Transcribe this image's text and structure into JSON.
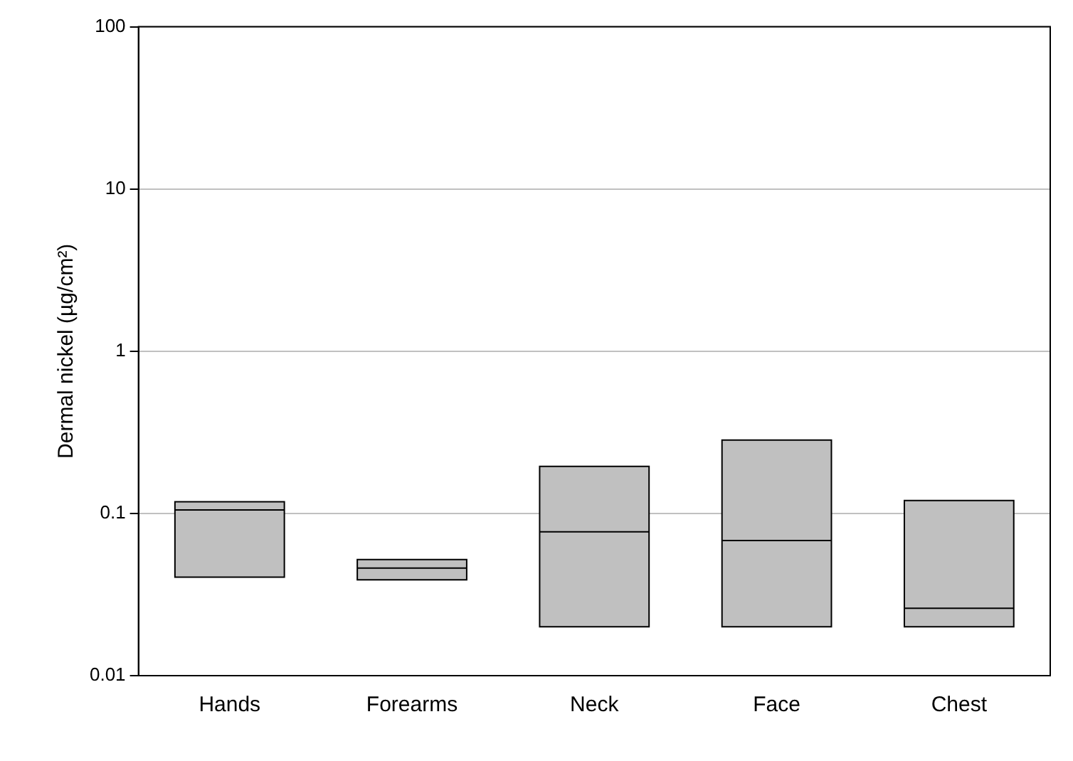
{
  "chart_data": {
    "type": "box",
    "ylabel": "Dermal nickel (µg/cm²)",
    "categories": [
      "Hands",
      "Forearms",
      "Neck",
      "Face",
      "Chest"
    ],
    "color": "#c0c0c0",
    "boxes": [
      {
        "low": 0.0405,
        "q1": 0.0405,
        "median": 0.105,
        "q3": 0.118,
        "high": 0.118
      },
      {
        "low": 0.039,
        "q1": 0.039,
        "median": 0.046,
        "q3": 0.052,
        "high": 0.052
      },
      {
        "low": 0.02,
        "q1": 0.02,
        "median": 0.077,
        "q3": 0.195,
        "high": 0.195
      },
      {
        "low": 0.02,
        "q1": 0.02,
        "median": 0.068,
        "q3": 0.283,
        "high": 0.283
      },
      {
        "low": 0.02,
        "q1": 0.02,
        "median": 0.026,
        "q3": 0.12,
        "high": 0.12
      }
    ],
    "log": "y",
    "ylim": [
      0.01,
      100
    ],
    "yticks": [
      0.01,
      0.1,
      1,
      10,
      100
    ],
    "grid": "y"
  }
}
